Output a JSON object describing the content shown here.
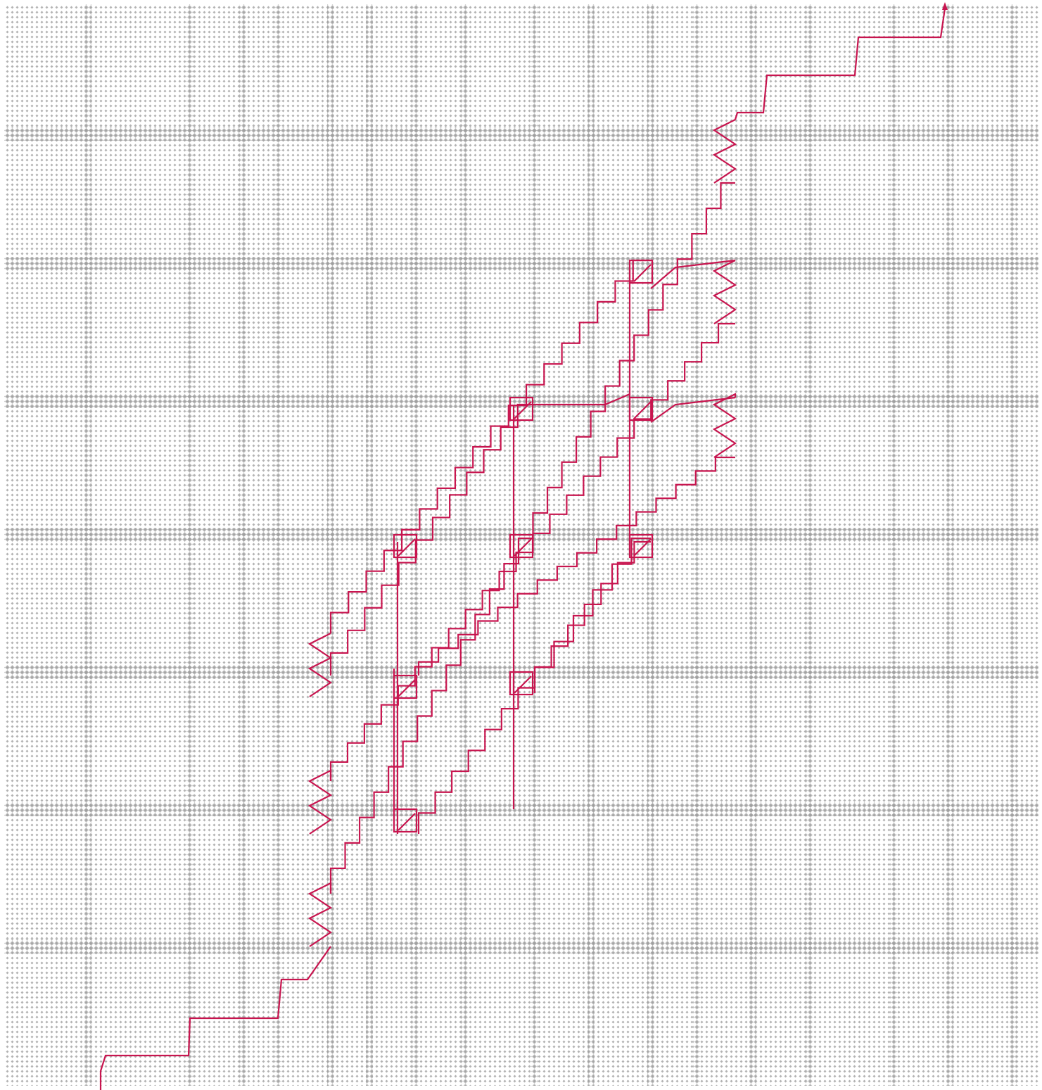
{
  "colors": {
    "path": "#c8154f",
    "pattern": "#9a9a9a"
  }
}
